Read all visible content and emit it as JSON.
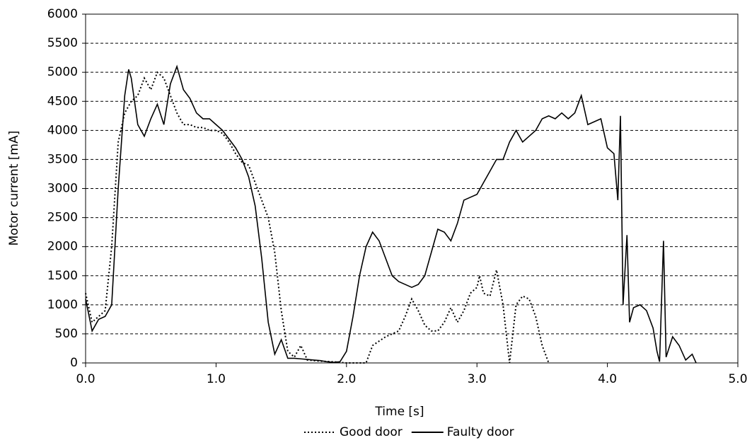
{
  "chart_data": {
    "type": "line",
    "xlabel": "Time [s]",
    "ylabel": "Motor current [mA]",
    "xlim": [
      0,
      5
    ],
    "ylim": [
      0,
      6000
    ],
    "xticks": [
      {
        "value": 0,
        "label": "0.0"
      },
      {
        "value": 1,
        "label": "1.0"
      },
      {
        "value": 2,
        "label": "2.0"
      },
      {
        "value": 3,
        "label": "3.0"
      },
      {
        "value": 4,
        "label": "4.0"
      },
      {
        "value": 5,
        "label": "5.0"
      }
    ],
    "yticks": [
      0,
      500,
      1000,
      1500,
      2000,
      2500,
      3000,
      3500,
      4000,
      4500,
      5000,
      5500,
      6000
    ],
    "grid": true,
    "legend": "bottom",
    "series": [
      {
        "name": "Good door",
        "color": "#000000",
        "dash": "dotted",
        "x": [
          0,
          0.05,
          0.1,
          0.15,
          0.2,
          0.25,
          0.3,
          0.35,
          0.4,
          0.45,
          0.5,
          0.55,
          0.6,
          0.65,
          0.7,
          0.75,
          0.8,
          0.85,
          0.9,
          0.95,
          1,
          1.05,
          1.1,
          1.15,
          1.2,
          1.25,
          1.3,
          1.35,
          1.4,
          1.45,
          1.5,
          1.55,
          1.6,
          1.65,
          1.7,
          1.8,
          1.9,
          2,
          2.15,
          2.2,
          2.3,
          2.4,
          2.45,
          2.5,
          2.55,
          2.6,
          2.65,
          2.7,
          2.75,
          2.8,
          2.85,
          2.9,
          2.95,
          3,
          3.02,
          3.05,
          3.1,
          3.15,
          3.2,
          3.25,
          3.3,
          3.35,
          3.4,
          3.45,
          3.5,
          3.55
        ],
        "values": [
          1200,
          700,
          800,
          900,
          2000,
          3800,
          4300,
          4500,
          4600,
          4900,
          4700,
          5000,
          4900,
          4600,
          4300,
          4100,
          4100,
          4050,
          4050,
          4000,
          4000,
          3950,
          3800,
          3600,
          3450,
          3400,
          3100,
          2800,
          2500,
          1900,
          900,
          200,
          100,
          300,
          50,
          30,
          20,
          0,
          0,
          300,
          450,
          550,
          800,
          1100,
          900,
          650,
          550,
          550,
          700,
          950,
          700,
          900,
          1200,
          1300,
          1500,
          1200,
          1150,
          1600,
          1000,
          0,
          1000,
          1150,
          1100,
          800,
          300,
          0
        ]
      },
      {
        "name": "Faulty door",
        "color": "#000000",
        "dash": "solid",
        "x": [
          0,
          0.05,
          0.1,
          0.15,
          0.2,
          0.25,
          0.3,
          0.33,
          0.35,
          0.4,
          0.45,
          0.5,
          0.55,
          0.6,
          0.65,
          0.7,
          0.75,
          0.8,
          0.85,
          0.9,
          0.95,
          1,
          1.05,
          1.1,
          1.15,
          1.2,
          1.25,
          1.3,
          1.35,
          1.4,
          1.45,
          1.5,
          1.55,
          1.6,
          1.65,
          1.7,
          1.75,
          1.8,
          1.85,
          1.9,
          1.95,
          2,
          2.05,
          2.1,
          2.15,
          2.2,
          2.25,
          2.3,
          2.35,
          2.4,
          2.45,
          2.5,
          2.55,
          2.6,
          2.65,
          2.7,
          2.75,
          2.8,
          2.85,
          2.9,
          2.95,
          3,
          3.05,
          3.1,
          3.15,
          3.2,
          3.25,
          3.3,
          3.35,
          3.4,
          3.45,
          3.5,
          3.55,
          3.6,
          3.65,
          3.7,
          3.75,
          3.8,
          3.85,
          3.9,
          3.95,
          4,
          4.05,
          4.08,
          4.1,
          4.12,
          4.15,
          4.17,
          4.2,
          4.25,
          4.3,
          4.35,
          4.38,
          4.4,
          4.43,
          4.45,
          4.5,
          4.55,
          4.6,
          4.65,
          4.68
        ],
        "values": [
          1100,
          550,
          750,
          800,
          1000,
          3000,
          4600,
          5050,
          4900,
          4100,
          3900,
          4200,
          4450,
          4100,
          4800,
          5100,
          4700,
          4550,
          4300,
          4200,
          4200,
          4100,
          4000,
          3850,
          3700,
          3500,
          3200,
          2700,
          1800,
          700,
          150,
          400,
          80,
          80,
          70,
          60,
          50,
          40,
          20,
          10,
          20,
          200,
          800,
          1500,
          2000,
          2250,
          2100,
          1800,
          1500,
          1400,
          1350,
          1300,
          1350,
          1500,
          1900,
          2300,
          2250,
          2100,
          2400,
          2800,
          2850,
          2900,
          3100,
          3300,
          3500,
          3500,
          3800,
          4000,
          3800,
          3900,
          4000,
          4200,
          4250,
          4200,
          4300,
          4200,
          4300,
          4600,
          4100,
          4150,
          4200,
          3700,
          3600,
          2800,
          4250,
          1000,
          2200,
          700,
          950,
          1000,
          900,
          600,
          200,
          20,
          2100,
          100,
          450,
          300,
          50,
          150,
          0
        ]
      }
    ]
  }
}
